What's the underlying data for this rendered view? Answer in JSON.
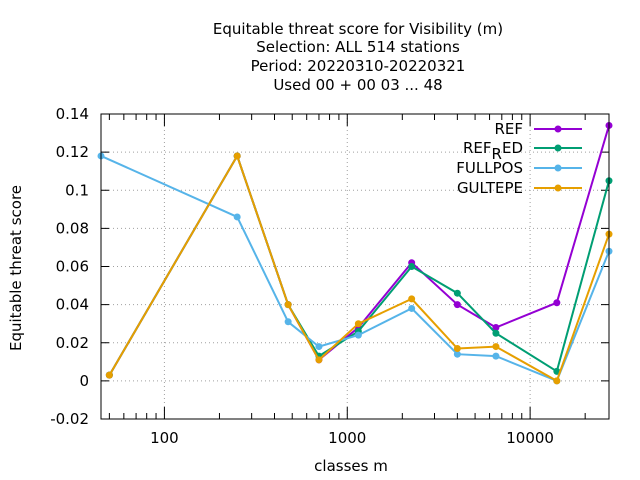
{
  "chart_data": {
    "type": "line",
    "title_lines": [
      "Equitable threat score  for Visibility (m)",
      "Selection: ALL    514 stations",
      "Period: 20220310-20220321",
      "Used  00 + 00 03 ... 48"
    ],
    "xlabel": "classes m",
    "ylabel": "Equitable threat score",
    "x_scale": "log",
    "xlim": [
      45,
      27000
    ],
    "ylim": [
      -0.02,
      0.14
    ],
    "yticks": [
      -0.02,
      0,
      0.02,
      0.04,
      0.06,
      0.08,
      0.1,
      0.12,
      0.14
    ],
    "ytick_labels": [
      "-0.02",
      "0",
      "0.02",
      "0.04",
      "0.06",
      "0.08",
      "0.1",
      "0.12",
      "0.14"
    ],
    "xticks": [
      100,
      1000,
      10000
    ],
    "xtick_labels": [
      "100",
      "1000",
      "10000"
    ],
    "grid": true,
    "legend_position": "top-right",
    "series": [
      {
        "name": "REF",
        "legend_main": "REF",
        "legend_sub": "",
        "legend_tail": "",
        "color": "#9400d3",
        "x": [
          50,
          250,
          475,
          700,
          1150,
          2250,
          4000,
          6500,
          14000,
          27000
        ],
        "y": [
          0.003,
          0.118,
          0.04,
          0.011,
          0.028,
          0.062,
          0.04,
          0.028,
          0.041,
          0.134
        ]
      },
      {
        "name": "REF_RED",
        "legend_main": "REF",
        "legend_sub": "R",
        "legend_tail": "ED",
        "color": "#009e73",
        "x": [
          50,
          250,
          475,
          700,
          1150,
          2250,
          4000,
          6500,
          14000,
          27000
        ],
        "y": [
          0.003,
          0.118,
          0.04,
          0.013,
          0.026,
          0.06,
          0.046,
          0.025,
          0.005,
          0.105
        ]
      },
      {
        "name": "FULLPOS",
        "legend_main": "FULLPOS",
        "legend_sub": "",
        "legend_tail": "",
        "color": "#56b4e9",
        "x": [
          45,
          250,
          475,
          700,
          1150,
          2250,
          4000,
          6500,
          14000,
          27000
        ],
        "y": [
          0.118,
          0.086,
          0.031,
          0.018,
          0.024,
          0.038,
          0.014,
          0.013,
          0.0,
          0.068
        ]
      },
      {
        "name": "GULTEPE",
        "legend_main": "GULTEPE",
        "legend_sub": "",
        "legend_tail": "",
        "color": "#e69f00",
        "x": [
          50,
          250,
          475,
          700,
          1150,
          2250,
          4000,
          6500,
          14000,
          27000
        ],
        "y": [
          0.003,
          0.118,
          0.04,
          0.011,
          0.03,
          0.043,
          0.017,
          0.018,
          0.0,
          0.077
        ]
      }
    ]
  }
}
